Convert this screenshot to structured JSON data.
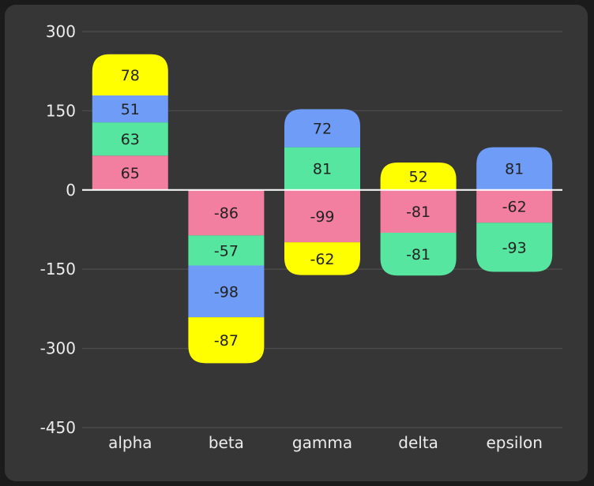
{
  "chart_data": {
    "type": "bar",
    "stacked": true,
    "categories": [
      "alpha",
      "beta",
      "gamma",
      "delta",
      "epsilon"
    ],
    "ylim": [
      -450,
      300
    ],
    "yticks": [
      300,
      150,
      0,
      -150,
      -300,
      -450
    ],
    "ytick_labels": [
      "300",
      "150",
      "0",
      "-150",
      "-300",
      "-450"
    ],
    "grid": "horizontal",
    "series": [
      {
        "color": "#f27ea0",
        "values": [
          65,
          -86,
          -99,
          -81,
          -62
        ]
      },
      {
        "color": "#56e6a0",
        "values": [
          63,
          -57,
          81,
          -81,
          -93
        ]
      },
      {
        "color": "#6f9cf6",
        "values": [
          51,
          -98,
          72,
          null,
          81
        ]
      },
      {
        "color": "#ffff00",
        "values": [
          78,
          -87,
          -62,
          52,
          null
        ]
      }
    ],
    "colors": {
      "background": "#363636",
      "grid": "#4a4a4a",
      "zero_line": "#ffffff",
      "text": "#ececec"
    }
  }
}
